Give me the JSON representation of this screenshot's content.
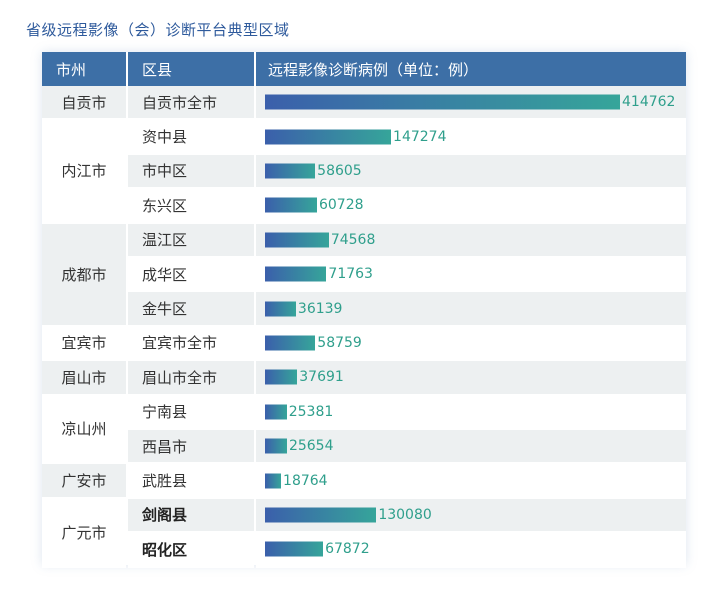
{
  "title": "省级远程影像（会）诊断平台典型区域",
  "headers": {
    "city": "市州",
    "district": "区县",
    "cases": "远程影像诊断病例（单位：例）"
  },
  "cities": [
    {
      "name": "自贡市",
      "start": 0,
      "span": 1
    },
    {
      "name": "内江市",
      "start": 1,
      "span": 3
    },
    {
      "name": "成都市",
      "start": 4,
      "span": 3
    },
    {
      "name": "宜宾市",
      "start": 7,
      "span": 1
    },
    {
      "name": "眉山市",
      "start": 8,
      "span": 1
    },
    {
      "name": "凉山州",
      "start": 9,
      "span": 2
    },
    {
      "name": "广安市",
      "start": 11,
      "span": 1
    },
    {
      "name": "广元市",
      "start": 12,
      "span": 2
    }
  ],
  "chart_data": {
    "type": "bar",
    "orientation": "horizontal",
    "title": "省级远程影像（会）诊断平台典型区域",
    "categories": [
      "自贡市全市",
      "资中县",
      "市中区",
      "东兴区",
      "温江区",
      "成华区",
      "金牛区",
      "宜宾市全市",
      "眉山市全市",
      "宁南县",
      "西昌市",
      "武胜县",
      "剑阁县",
      "昭化区"
    ],
    "values": [
      414762,
      147274,
      58605,
      60728,
      74568,
      71763,
      36139,
      58759,
      37691,
      25381,
      25654,
      18764,
      130080,
      67872
    ],
    "value_label": "远程影像诊断病例（单位：例）",
    "colors": {
      "bar_start": "#3b5fab",
      "bar_end": "#36a59a",
      "label": "#2f9f8c",
      "header": "#3d6fa6"
    }
  },
  "bold_rows": [
    12,
    13
  ]
}
